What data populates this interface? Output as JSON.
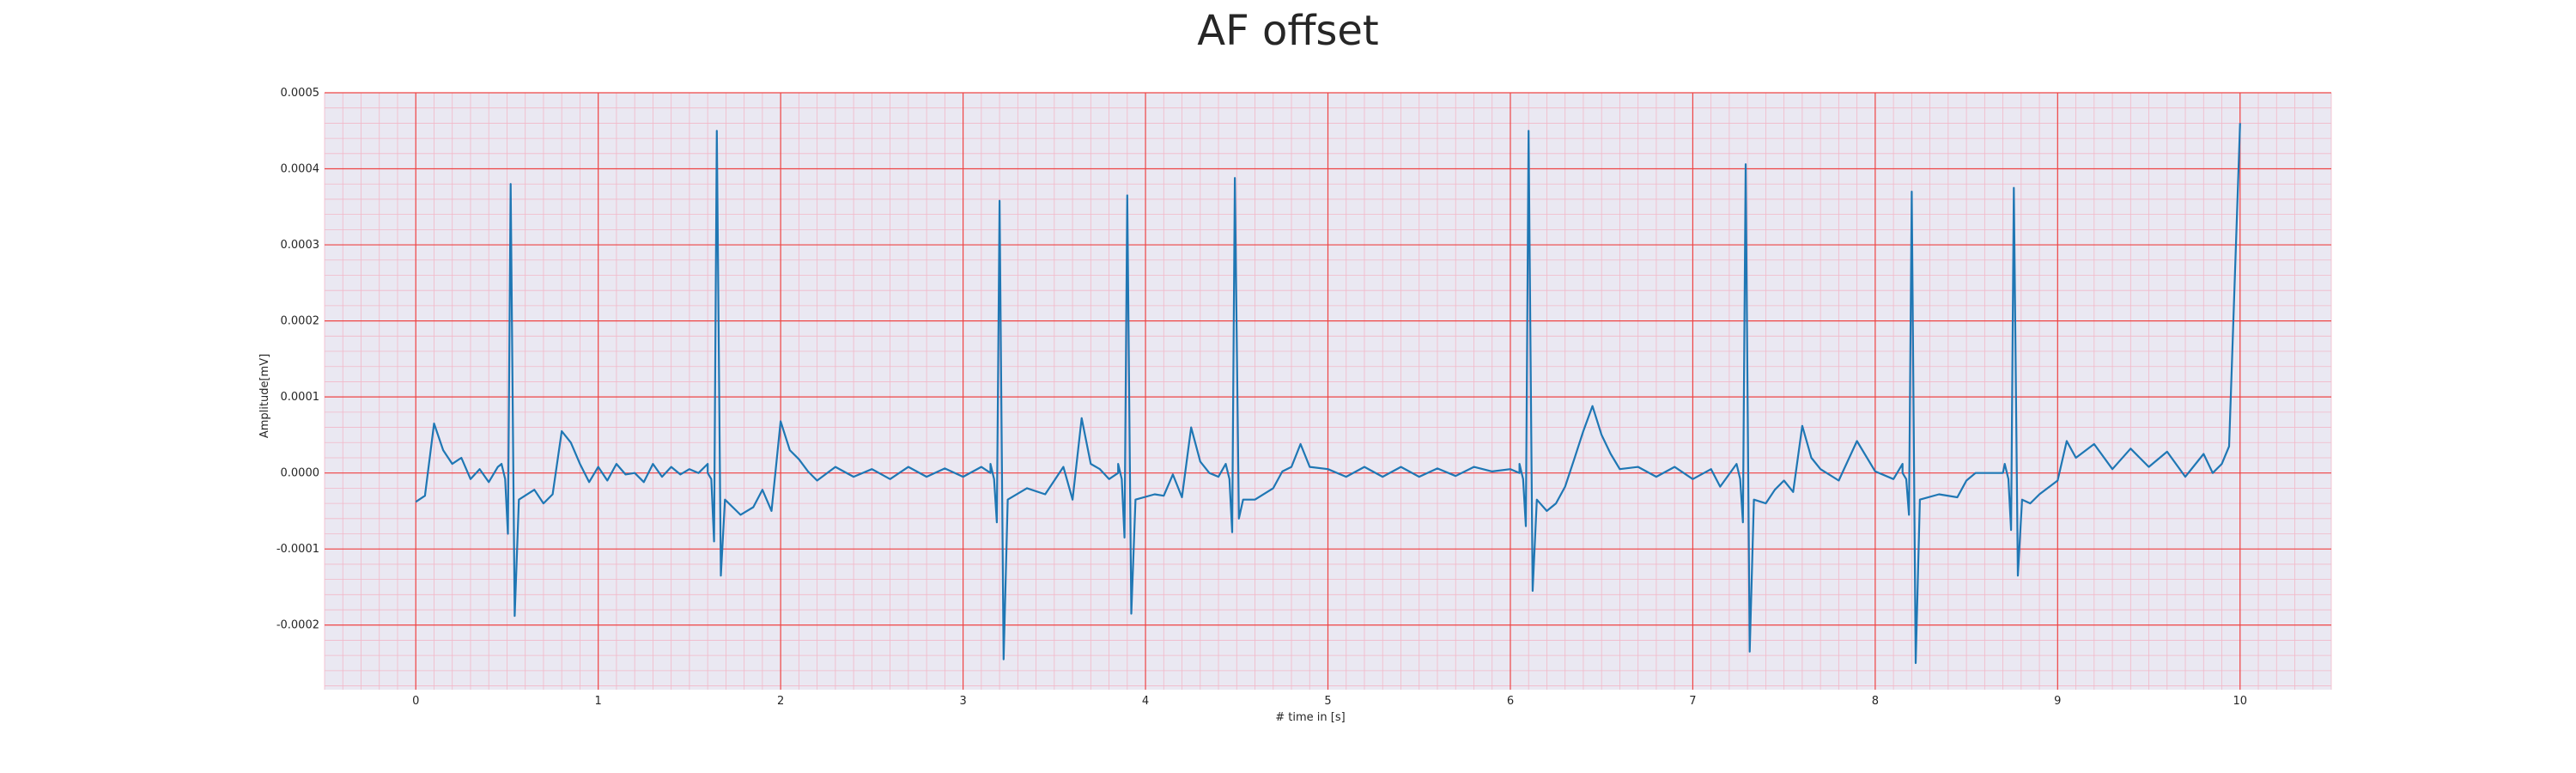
{
  "chart_data": {
    "type": "line",
    "title": "AF offset",
    "xlabel": "# time in [s]",
    "ylabel": "Amplitude[mV]",
    "xlim": [
      -0.5,
      10.5
    ],
    "ylim": [
      -0.000285,
      0.0005
    ],
    "xticks": [
      "0",
      "1",
      "2",
      "3",
      "4",
      "5",
      "6",
      "7",
      "8",
      "9",
      "10"
    ],
    "yticks": [
      "-0.0002",
      "-0.0001",
      "0.0000",
      "0.0001",
      "0.0002",
      "0.0003",
      "0.0004",
      "0.0005"
    ],
    "grid": true,
    "colors": {
      "line": "#1f77b4",
      "plot_background": "#eae8f2",
      "major_grid": "#ee4444",
      "minor_grid": "#f2b8c8"
    },
    "series": [
      {
        "baseline_points": [
          [
            0.0,
            -3.8e-05
          ],
          [
            0.05,
            -3e-05
          ],
          [
            0.1,
            6.5e-05
          ],
          [
            0.15,
            3e-05
          ],
          [
            0.2,
            1.2e-05
          ],
          [
            0.25,
            2e-05
          ],
          [
            0.3,
            -8e-06
          ],
          [
            0.35,
            5e-06
          ],
          [
            0.4,
            -1.2e-05
          ],
          [
            0.45,
            8e-06
          ],
          [
            0.5,
            0.0
          ],
          [
            0.65,
            -2.2e-05
          ],
          [
            0.7,
            -4e-05
          ],
          [
            0.75,
            -2.8e-05
          ],
          [
            0.8,
            5.5e-05
          ],
          [
            0.85,
            4e-05
          ],
          [
            0.9,
            1.2e-05
          ],
          [
            0.95,
            -1.2e-05
          ],
          [
            1.0,
            8e-06
          ],
          [
            1.05,
            -1e-05
          ],
          [
            1.1,
            1.2e-05
          ],
          [
            1.15,
            -2e-06
          ],
          [
            1.2,
            0.0
          ],
          [
            1.25,
            -1.2e-05
          ],
          [
            1.3,
            1.2e-05
          ],
          [
            1.35,
            -5e-06
          ],
          [
            1.4,
            8e-06
          ],
          [
            1.45,
            -2e-06
          ],
          [
            1.5,
            5e-06
          ],
          [
            1.55,
            0.0
          ],
          [
            1.6,
            0.0
          ],
          [
            1.78,
            -5.5e-05
          ],
          [
            1.85,
            -4.5e-05
          ],
          [
            1.9,
            -2.2e-05
          ],
          [
            1.95,
            -5e-05
          ],
          [
            2.0,
            6.8e-05
          ],
          [
            2.05,
            3e-05
          ],
          [
            2.1,
            1.8e-05
          ],
          [
            2.15,
            2e-06
          ],
          [
            2.2,
            -1e-05
          ],
          [
            2.3,
            8e-06
          ],
          [
            2.4,
            -5e-06
          ],
          [
            2.5,
            5e-06
          ],
          [
            2.6,
            -8e-06
          ],
          [
            2.7,
            8e-06
          ],
          [
            2.8,
            -5e-06
          ],
          [
            2.9,
            6e-06
          ],
          [
            3.0,
            -5e-06
          ],
          [
            3.1,
            8e-06
          ],
          [
            3.15,
            0.0
          ],
          [
            3.35,
            -2e-05
          ],
          [
            3.45,
            -2.8e-05
          ],
          [
            3.55,
            8e-06
          ],
          [
            3.6,
            -3.5e-05
          ],
          [
            3.65,
            7.2e-05
          ],
          [
            3.7,
            1.2e-05
          ],
          [
            3.75,
            5e-06
          ],
          [
            3.8,
            -8e-06
          ],
          [
            3.85,
            0.0
          ],
          [
            4.05,
            -2.8e-05
          ],
          [
            4.1,
            -3e-05
          ],
          [
            4.15,
            -2e-06
          ],
          [
            4.2,
            -3.2e-05
          ],
          [
            4.25,
            6e-05
          ],
          [
            4.3,
            1.5e-05
          ],
          [
            4.35,
            0.0
          ],
          [
            4.4,
            -5e-06
          ],
          [
            4.45,
            0.0
          ],
          [
            4.6,
            -3.5e-05
          ],
          [
            4.7,
            -2e-05
          ],
          [
            4.75,
            2e-06
          ],
          [
            4.8,
            8e-06
          ],
          [
            4.85,
            3.8e-05
          ],
          [
            4.9,
            8e-06
          ],
          [
            5.0,
            5e-06
          ],
          [
            5.1,
            -5e-06
          ],
          [
            5.2,
            8e-06
          ],
          [
            5.3,
            -5e-06
          ],
          [
            5.4,
            8e-06
          ],
          [
            5.5,
            -5e-06
          ],
          [
            5.6,
            6e-06
          ],
          [
            5.7,
            -4e-06
          ],
          [
            5.8,
            8e-06
          ],
          [
            5.9,
            2e-06
          ],
          [
            6.0,
            5e-06
          ],
          [
            6.05,
            0.0
          ],
          [
            6.2,
            -5e-05
          ],
          [
            6.25,
            -4e-05
          ],
          [
            6.3,
            -1.8e-05
          ],
          [
            6.35,
            1.8e-05
          ],
          [
            6.4,
            5.5e-05
          ],
          [
            6.45,
            8.8e-05
          ],
          [
            6.5,
            5e-05
          ],
          [
            6.55,
            2.5e-05
          ],
          [
            6.6,
            5e-06
          ],
          [
            6.7,
            8e-06
          ],
          [
            6.8,
            -5e-06
          ],
          [
            6.9,
            8e-06
          ],
          [
            7.0,
            -8e-06
          ],
          [
            7.1,
            5e-06
          ],
          [
            7.15,
            -1.8e-05
          ],
          [
            7.25,
            0.0
          ],
          [
            7.4,
            -4e-05
          ],
          [
            7.45,
            -2.2e-05
          ],
          [
            7.5,
            -1e-05
          ],
          [
            7.55,
            -2.5e-05
          ],
          [
            7.6,
            6.2e-05
          ],
          [
            7.65,
            2e-05
          ],
          [
            7.7,
            5e-06
          ],
          [
            7.8,
            -1e-05
          ],
          [
            7.9,
            4.2e-05
          ],
          [
            8.0,
            2e-06
          ],
          [
            8.1,
            -8e-06
          ],
          [
            8.15,
            0.0
          ],
          [
            8.35,
            -2.8e-05
          ],
          [
            8.45,
            -3.2e-05
          ],
          [
            8.5,
            -1e-05
          ],
          [
            8.55,
            0.0
          ],
          [
            8.7,
            0.0
          ],
          [
            8.85,
            -4e-05
          ],
          [
            8.9,
            -2.8e-05
          ],
          [
            9.0,
            -1e-05
          ],
          [
            9.05,
            4.2e-05
          ],
          [
            9.1,
            2e-05
          ],
          [
            9.2,
            3.8e-05
          ],
          [
            9.3,
            5e-06
          ],
          [
            9.4,
            3.2e-05
          ],
          [
            9.5,
            8e-06
          ],
          [
            9.6,
            2.8e-05
          ],
          [
            9.7,
            -5e-06
          ],
          [
            9.8,
            2.5e-05
          ],
          [
            9.85,
            0.0
          ],
          [
            9.9,
            1.2e-05
          ],
          [
            9.94,
            3.5e-05
          ],
          [
            10.0,
            0.00046
          ]
        ],
        "beats": [
          {
            "t": 0.52,
            "q": -8e-05,
            "r": 0.00038,
            "s": -0.000188
          },
          {
            "t": 1.65,
            "q": -9e-05,
            "r": 0.00045,
            "s": -0.000135
          },
          {
            "t": 3.2,
            "q": -6.5e-05,
            "r": 0.000358,
            "s": -0.000245
          },
          {
            "t": 3.9,
            "q": -8.5e-05,
            "r": 0.000365,
            "s": -0.000185
          },
          {
            "t": 4.49,
            "q": -7.8e-05,
            "r": 0.000388,
            "s": -6e-05
          },
          {
            "t": 6.1,
            "q": -7e-05,
            "r": 0.00045,
            "s": -0.000155
          },
          {
            "t": 7.29,
            "q": -6.5e-05,
            "r": 0.000406,
            "s": -0.000235
          },
          {
            "t": 8.2,
            "q": -5.5e-05,
            "r": 0.00037,
            "s": -0.00025
          },
          {
            "t": 8.76,
            "q": -7.5e-05,
            "r": 0.000375,
            "s": -0.000135
          }
        ]
      }
    ]
  }
}
